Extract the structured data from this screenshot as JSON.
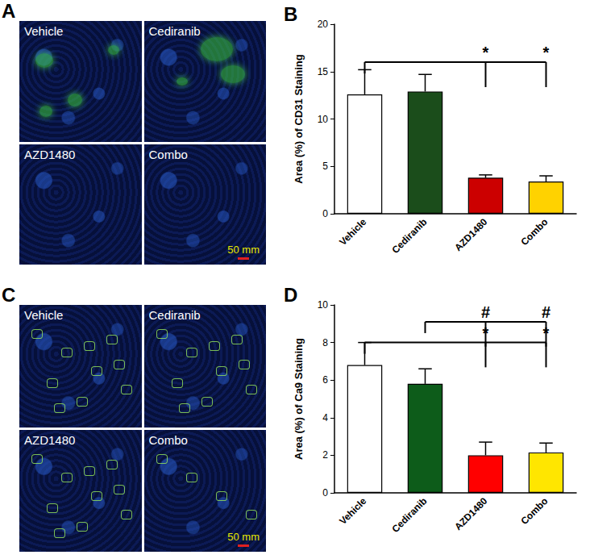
{
  "chart_data": [
    {
      "type": "bar",
      "title": "B",
      "categories": [
        "Vehicle",
        "Cediranib",
        "AZD1480",
        "Combo"
      ],
      "values": [
        12.6,
        12.9,
        3.8,
        3.4
      ],
      "errors": [
        2.6,
        1.8,
        0.3,
        0.6
      ],
      "colors": [
        "#ffffff",
        "#1b4d1b",
        "#cc0000",
        "#ffd200"
      ],
      "y_label": "Area (%) of CD31 Staining",
      "ylim": [
        0,
        20
      ],
      "yticks": [
        0,
        5,
        10,
        15,
        20
      ],
      "grid": false,
      "significance": [
        {
          "label": "*",
          "reference": "Vehicle",
          "targets": [
            "AZD1480",
            "Combo"
          ]
        }
      ]
    },
    {
      "type": "bar",
      "title": "D",
      "categories": [
        "Vehicle",
        "Cediranib",
        "AZD1480",
        "Combo"
      ],
      "values": [
        6.8,
        5.8,
        2.0,
        2.15
      ],
      "errors": [
        1.2,
        0.8,
        0.7,
        0.5
      ],
      "colors": [
        "#ffffff",
        "#0d5c1a",
        "#ff0000",
        "#ffe600"
      ],
      "y_label": "Area (%) of Ca9 Staining",
      "ylim": [
        0,
        10
      ],
      "yticks": [
        0,
        2,
        4,
        6,
        8,
        10
      ],
      "grid": false,
      "significance": [
        {
          "label": "*",
          "reference": "Vehicle",
          "targets": [
            "AZD1480",
            "Combo"
          ]
        },
        {
          "label": "#",
          "reference": "Cediranib",
          "targets": [
            "AZD1480",
            "Combo"
          ]
        }
      ]
    }
  ],
  "images": [
    {
      "label": "A",
      "panels": [
        "Vehicle",
        "Cediranib",
        "AZD1480",
        "Combo"
      ],
      "scale_bar": "50 mm"
    },
    {
      "label": "C",
      "panels": [
        "Vehicle",
        "Cediranib",
        "AZD1480",
        "Combo"
      ],
      "scale_bar": "50 mm"
    }
  ]
}
